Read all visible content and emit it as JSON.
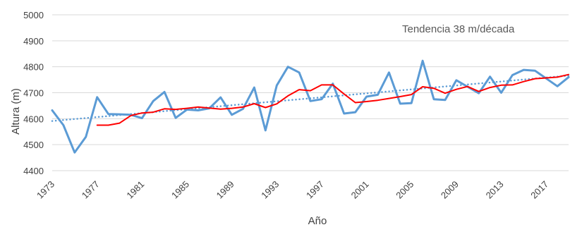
{
  "chart_data": {
    "type": "line",
    "xlabel": "Año",
    "ylabel": "Altura (m)",
    "annotation": "Tendencia 38 m/década",
    "xlim": [
      1973,
      2019
    ],
    "ylim": [
      4400,
      5000
    ],
    "yticks": [
      4400,
      4500,
      4600,
      4700,
      4800,
      4900,
      5000
    ],
    "xticks": [
      1973,
      1977,
      1981,
      1985,
      1989,
      1993,
      1997,
      2001,
      2005,
      2009,
      2013,
      2017
    ],
    "grid": true,
    "legend": "none",
    "series": [
      {
        "color": "#5b9bd5",
        "style": "solid",
        "x": [
          1973,
          1974,
          1975,
          1976,
          1977,
          1978,
          1979,
          1980,
          1981,
          1982,
          1983,
          1984,
          1985,
          1986,
          1987,
          1988,
          1989,
          1990,
          1991,
          1992,
          1993,
          1994,
          1995,
          1996,
          1997,
          1998,
          1999,
          2000,
          2001,
          2002,
          2003,
          2004,
          2005,
          2006,
          2007,
          2008,
          2009,
          2010,
          2011,
          2012,
          2013,
          2014,
          2015,
          2016,
          2017,
          2018,
          2019
        ],
        "y": [
          4632,
          4575,
          4470,
          4530,
          4683,
          4618,
          4617,
          4615,
          4602,
          4668,
          4703,
          4603,
          4635,
          4632,
          4640,
          4682,
          4615,
          4638,
          4720,
          4555,
          4728,
          4800,
          4778,
          4668,
          4675,
          4735,
          4620,
          4625,
          4685,
          4692,
          4778,
          4658,
          4660,
          4823,
          4675,
          4672,
          4748,
          4723,
          4698,
          4762,
          4700,
          4768,
          4788,
          4785,
          4755,
          4725,
          4760
        ]
      },
      {
        "color": "#ff0000",
        "style": "solid",
        "x": [
          1977,
          1978,
          1979,
          1980,
          1981,
          1982,
          1983,
          1984,
          1985,
          1986,
          1987,
          1988,
          1989,
          1990,
          1991,
          1992,
          1993,
          1994,
          1995,
          1996,
          1997,
          1998,
          1999,
          2000,
          2001,
          2002,
          2003,
          2004,
          2005,
          2006,
          2007,
          2008,
          2009,
          2010,
          2011,
          2012,
          2013,
          2014,
          2015,
          2016,
          2017,
          2018,
          2019
        ],
        "y": [
          4575,
          4575,
          4583,
          4612,
          4622,
          4625,
          4638,
          4636,
          4640,
          4645,
          4641,
          4637,
          4640,
          4645,
          4658,
          4643,
          4657,
          4688,
          4712,
          4708,
          4730,
          4730,
          4695,
          4662,
          4666,
          4671,
          4678,
          4685,
          4693,
          4723,
          4717,
          4698,
          4713,
          4724,
          4705,
          4720,
          4729,
          4730,
          4743,
          4754,
          4757,
          4760,
          4770
        ]
      },
      {
        "color": "#5b9bd5",
        "style": "dotted",
        "x": [
          1973,
          2019
        ],
        "y": [
          4591,
          4766
        ]
      }
    ]
  }
}
